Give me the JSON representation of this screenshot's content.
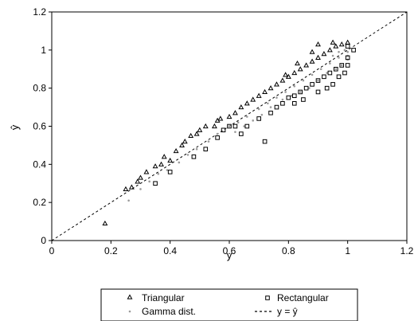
{
  "chart_data": {
    "type": "scatter",
    "xlabel": "y",
    "ylabel": "ŷ",
    "xlim": [
      0,
      1.2
    ],
    "ylim": [
      0,
      1.2
    ],
    "x_ticks": [
      "0",
      "0.2",
      "0.4",
      "0.6",
      "0.8",
      "1",
      "1.2"
    ],
    "y_ticks": [
      "0",
      "0.2",
      "0.4",
      "0.6",
      "0.8",
      "1",
      "1.2"
    ],
    "grid": false,
    "legend_position": "bottom",
    "series": [
      {
        "name": "Triangular",
        "marker": "triangle-open",
        "color": "#000000",
        "points": [
          [
            0.18,
            0.09
          ],
          [
            0.25,
            0.27
          ],
          [
            0.27,
            0.28
          ],
          [
            0.29,
            0.31
          ],
          [
            0.3,
            0.33
          ],
          [
            0.32,
            0.36
          ],
          [
            0.35,
            0.39
          ],
          [
            0.37,
            0.4
          ],
          [
            0.38,
            0.44
          ],
          [
            0.4,
            0.42
          ],
          [
            0.42,
            0.47
          ],
          [
            0.44,
            0.5
          ],
          [
            0.45,
            0.52
          ],
          [
            0.47,
            0.55
          ],
          [
            0.49,
            0.56
          ],
          [
            0.5,
            0.58
          ],
          [
            0.52,
            0.6
          ],
          [
            0.55,
            0.6
          ],
          [
            0.56,
            0.63
          ],
          [
            0.57,
            0.64
          ],
          [
            0.6,
            0.65
          ],
          [
            0.62,
            0.67
          ],
          [
            0.64,
            0.7
          ],
          [
            0.66,
            0.72
          ],
          [
            0.68,
            0.74
          ],
          [
            0.7,
            0.76
          ],
          [
            0.72,
            0.78
          ],
          [
            0.74,
            0.8
          ],
          [
            0.76,
            0.82
          ],
          [
            0.78,
            0.84
          ],
          [
            0.8,
            0.86
          ],
          [
            0.82,
            0.88
          ],
          [
            0.84,
            0.9
          ],
          [
            0.86,
            0.92
          ],
          [
            0.88,
            0.94
          ],
          [
            0.9,
            0.96
          ],
          [
            0.92,
            0.98
          ],
          [
            0.94,
            1.0
          ],
          [
            0.96,
            1.02
          ],
          [
            0.98,
            1.03
          ],
          [
            1.0,
            1.04
          ],
          [
            0.9,
            1.03
          ],
          [
            0.95,
            1.04
          ],
          [
            0.88,
            0.99
          ],
          [
            0.83,
            0.93
          ],
          [
            0.79,
            0.87
          ]
        ]
      },
      {
        "name": "Rectangular",
        "marker": "square-open",
        "color": "#000000",
        "points": [
          [
            0.35,
            0.3
          ],
          [
            0.4,
            0.36
          ],
          [
            0.48,
            0.44
          ],
          [
            0.52,
            0.48
          ],
          [
            0.56,
            0.54
          ],
          [
            0.58,
            0.58
          ],
          [
            0.6,
            0.6
          ],
          [
            0.62,
            0.6
          ],
          [
            0.64,
            0.56
          ],
          [
            0.66,
            0.6
          ],
          [
            0.7,
            0.64
          ],
          [
            0.72,
            0.52
          ],
          [
            0.74,
            0.67
          ],
          [
            0.76,
            0.7
          ],
          [
            0.78,
            0.72
          ],
          [
            0.8,
            0.75
          ],
          [
            0.82,
            0.76
          ],
          [
            0.84,
            0.78
          ],
          [
            0.86,
            0.8
          ],
          [
            0.88,
            0.82
          ],
          [
            0.9,
            0.84
          ],
          [
            0.92,
            0.86
          ],
          [
            0.94,
            0.88
          ],
          [
            0.96,
            0.9
          ],
          [
            0.98,
            0.92
          ],
          [
            1.0,
            0.96
          ],
          [
            1.0,
            1.02
          ],
          [
            0.97,
            0.86
          ],
          [
            0.95,
            0.82
          ],
          [
            0.93,
            0.8
          ],
          [
            0.99,
            0.88
          ],
          [
            1.0,
            0.92
          ],
          [
            0.9,
            0.78
          ],
          [
            0.85,
            0.74
          ],
          [
            0.82,
            0.72
          ],
          [
            1.02,
            1.0
          ]
        ]
      },
      {
        "name": "Gamma dist.",
        "marker": "dot",
        "color": "#9a9a9a",
        "points": [
          [
            0.26,
            0.21
          ],
          [
            0.3,
            0.27
          ],
          [
            0.33,
            0.31
          ],
          [
            0.36,
            0.35
          ],
          [
            0.39,
            0.37
          ],
          [
            0.43,
            0.41
          ],
          [
            0.46,
            0.45
          ],
          [
            0.49,
            0.48
          ],
          [
            0.53,
            0.52
          ],
          [
            0.56,
            0.56
          ],
          [
            0.6,
            0.6
          ],
          [
            0.63,
            0.62
          ],
          [
            0.66,
            0.65
          ],
          [
            0.7,
            0.69
          ],
          [
            0.73,
            0.72
          ],
          [
            0.76,
            0.75
          ],
          [
            0.79,
            0.78
          ],
          [
            0.82,
            0.81
          ],
          [
            0.85,
            0.84
          ],
          [
            0.88,
            0.87
          ],
          [
            0.91,
            0.9
          ],
          [
            0.94,
            0.93
          ],
          [
            0.97,
            0.96
          ],
          [
            1.0,
            0.99
          ],
          [
            0.98,
            0.92
          ],
          [
            0.96,
            0.9
          ],
          [
            0.99,
            1.0
          ],
          [
            0.93,
            0.88
          ],
          [
            0.9,
            0.84
          ],
          [
            0.87,
            0.8
          ],
          [
            0.84,
            0.78
          ],
          [
            0.81,
            0.76
          ],
          [
            0.78,
            0.74
          ],
          [
            0.74,
            0.7
          ],
          [
            0.71,
            0.66
          ],
          [
            0.68,
            0.63
          ],
          [
            0.65,
            0.6
          ],
          [
            0.62,
            0.57
          ],
          [
            1.0,
            0.97
          ],
          [
            0.97,
            0.99
          ],
          [
            1.0,
            0.95
          ],
          [
            0.95,
            0.97
          ]
        ]
      },
      {
        "name": "y = ŷ",
        "marker": "dashed-line",
        "color": "#000000",
        "points": [
          [
            0,
            0
          ],
          [
            1.2,
            1.2
          ]
        ]
      }
    ]
  }
}
